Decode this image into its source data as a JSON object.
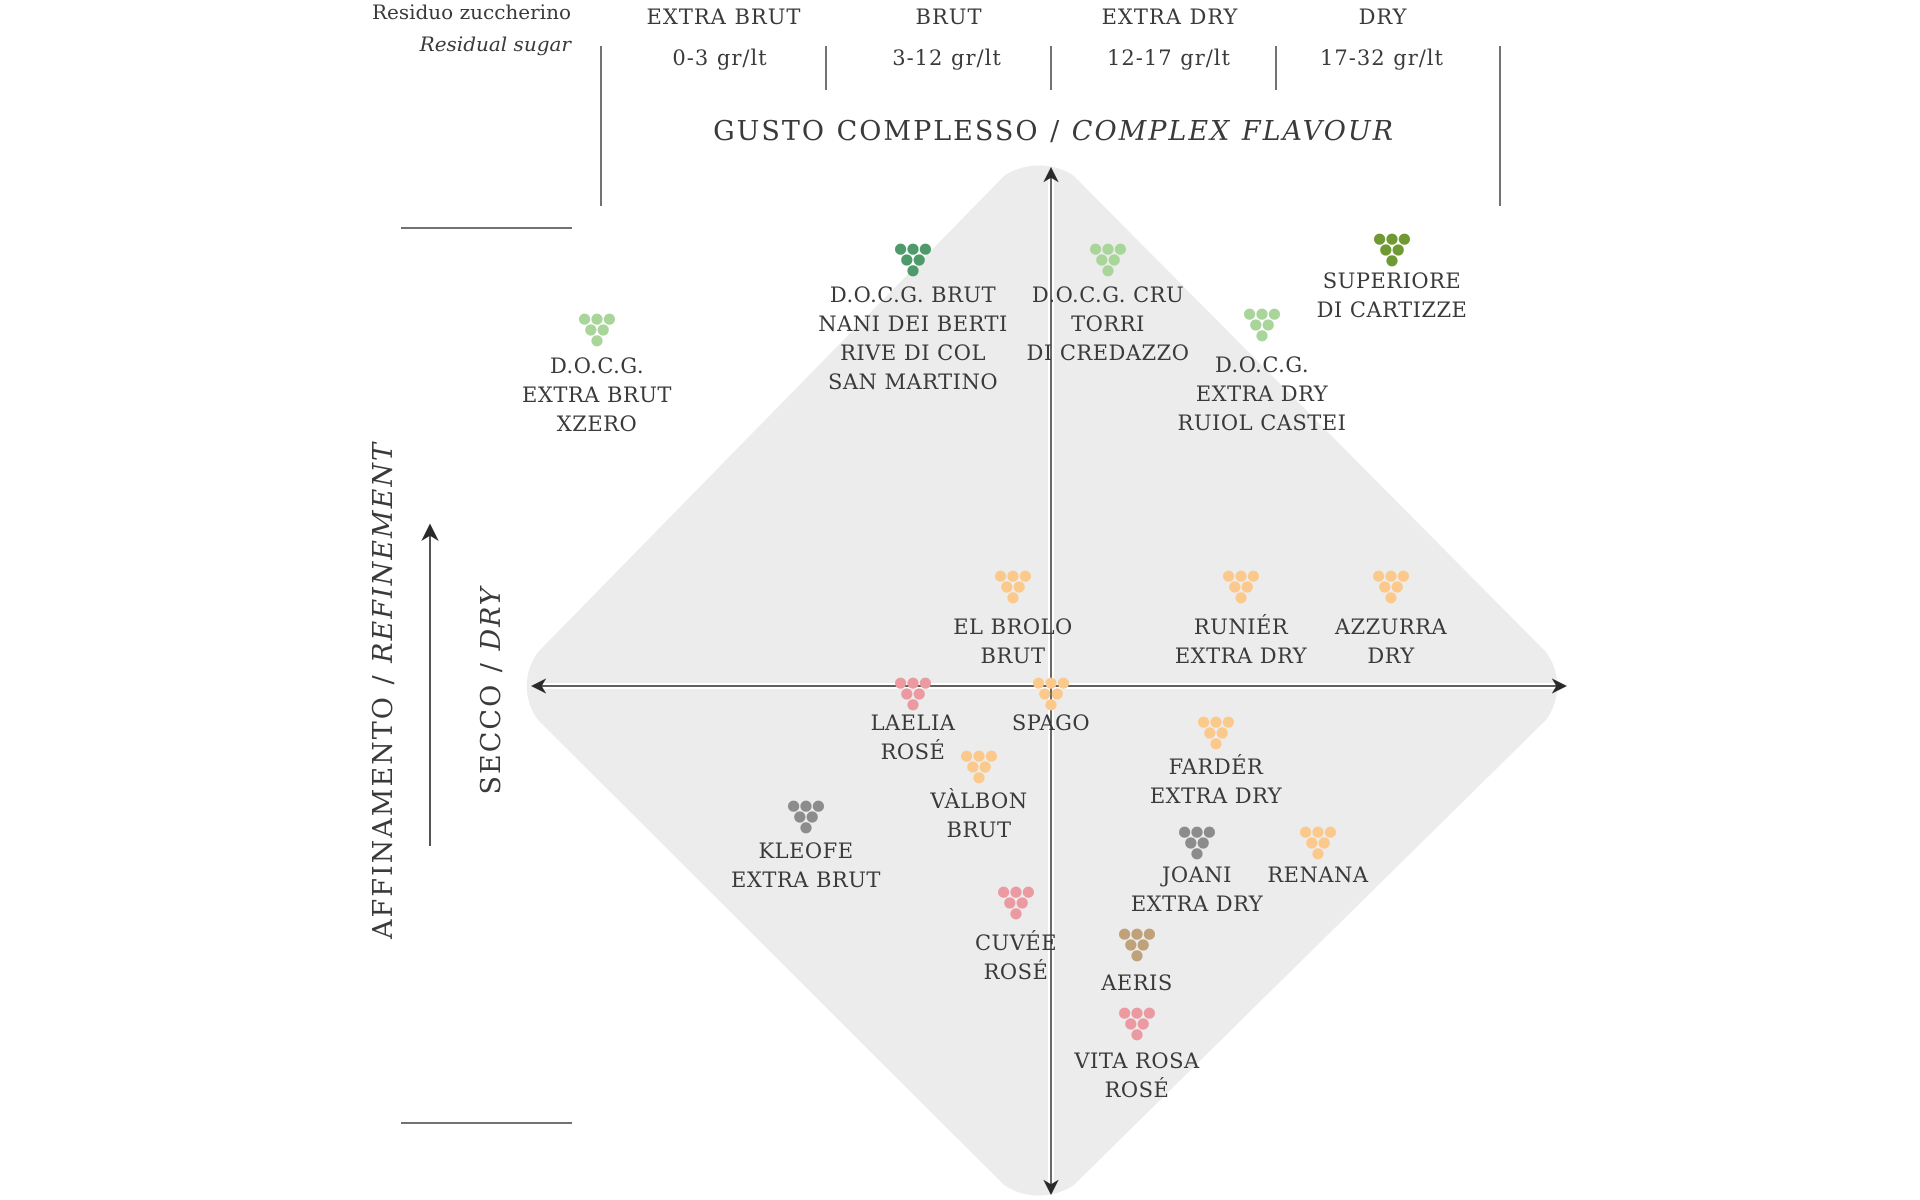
{
  "residual_sugar": {
    "label_it": "Residuo zuccherino",
    "label_en": "Residual sugar",
    "columns": [
      {
        "name": "EXTRA BRUT",
        "range": "0-3 gr/lt"
      },
      {
        "name": "BRUT",
        "range": "3-12 gr/lt"
      },
      {
        "name": "EXTRA DRY",
        "range": "12-17 gr/lt"
      },
      {
        "name": "DRY",
        "range": "17-32 gr/lt"
      }
    ]
  },
  "axes": {
    "top_it": "GUSTO COMPLESSO / ",
    "top_en": "COMPLEX FLAVOUR",
    "side_it": "AFFINAMENTO / ",
    "side_en": "REFINEMENT",
    "inner_it": "SECCO / ",
    "inner_en": "DRY"
  },
  "colors": {
    "diamond": "#ececec",
    "green_dark": "#4e9a6a",
    "green_light": "#a9d59a",
    "green_olive": "#6f9a33",
    "orange": "#fcc98c",
    "pink": "#eb9aa2",
    "grey": "#8c8c8c",
    "tan": "#bfa17a"
  },
  "wines": [
    {
      "name": [
        "D.O.C.G.",
        "EXTRA BRUT",
        "XZERO"
      ],
      "color": "green_light"
    },
    {
      "name": [
        "D.O.C.G. BRUT",
        "NANI DEI BERTI",
        "RIVE DI COL",
        "SAN MARTINO"
      ],
      "color": "green_dark"
    },
    {
      "name": [
        "D.O.C.G. CRU",
        "TORRI",
        "DI CREDAZZO"
      ],
      "color": "green_light"
    },
    {
      "name": [
        "SUPERIORE",
        "DI CARTIZZE"
      ],
      "color": "green_olive"
    },
    {
      "name": [
        "D.O.C.G.",
        "EXTRA DRY",
        "RUIOL CASTEI"
      ],
      "color": "green_light"
    },
    {
      "name": [
        "EL BROLO",
        "BRUT"
      ],
      "color": "orange"
    },
    {
      "name": [
        "RUNIÉR",
        "EXTRA DRY"
      ],
      "color": "orange"
    },
    {
      "name": [
        "AZZURRA",
        "DRY"
      ],
      "color": "orange"
    },
    {
      "name": [
        "LAELIA",
        "ROSÉ"
      ],
      "color": "pink"
    },
    {
      "name": [
        "SPAGO"
      ],
      "color": "orange"
    },
    {
      "name": [
        "VÀLBON",
        "BRUT"
      ],
      "color": "orange"
    },
    {
      "name": [
        "FARDÉR",
        "EXTRA DRY"
      ],
      "color": "orange"
    },
    {
      "name": [
        "KLEOFE",
        "EXTRA BRUT"
      ],
      "color": "grey"
    },
    {
      "name": [
        "JOANI",
        "EXTRA DRY"
      ],
      "color": "grey"
    },
    {
      "name": [
        "RENANA"
      ],
      "color": "orange"
    },
    {
      "name": [
        "CUVÉE",
        "ROSÉ"
      ],
      "color": "pink"
    },
    {
      "name": [
        "AERIS"
      ],
      "color": "tan"
    },
    {
      "name": [
        "VITA ROSA",
        "ROSÉ"
      ],
      "color": "pink"
    }
  ]
}
